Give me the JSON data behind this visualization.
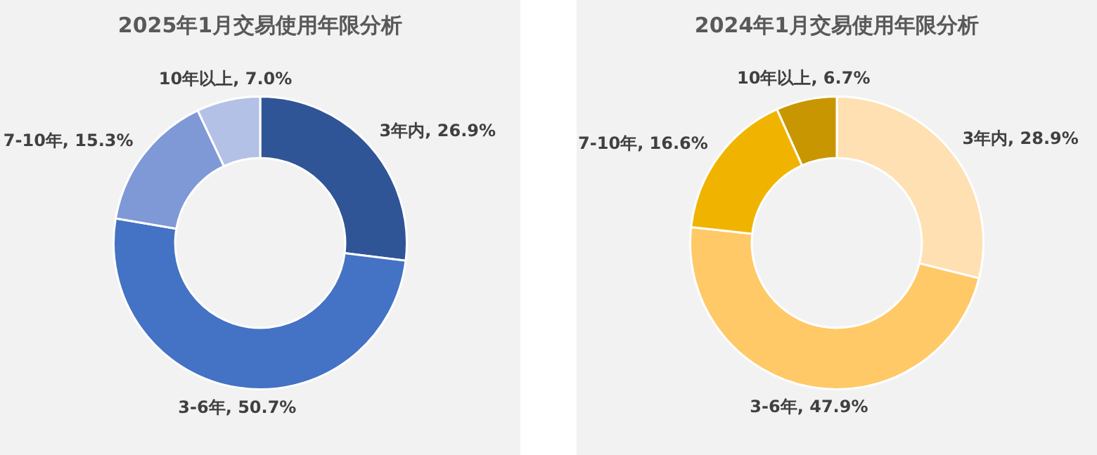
{
  "chart_data": [
    {
      "type": "donut",
      "title": "2025年1月交易使用年限分析",
      "categories": [
        "3年内",
        "3-6年",
        "7-10年",
        "10年以上"
      ],
      "values": [
        26.9,
        50.7,
        15.3,
        7.0
      ],
      "colors": [
        "#2f5597",
        "#4472c4",
        "#7f98d6",
        "#b4c1e6"
      ],
      "value_labels": [
        "26.9%",
        "50.7%",
        "15.3%",
        "7.0%"
      ]
    },
    {
      "type": "donut",
      "title": "2024年1月交易使用年限分析",
      "categories": [
        "3年内",
        "3-6年",
        "7-10年",
        "10年以上"
      ],
      "values": [
        28.9,
        47.9,
        16.6,
        6.7
      ],
      "colors": [
        "#ffe0b2",
        "#ffc968",
        "#f0b400",
        "#c89600"
      ],
      "value_labels": [
        "28.9%",
        "47.9%",
        "16.6%",
        "6.7%"
      ]
    }
  ]
}
